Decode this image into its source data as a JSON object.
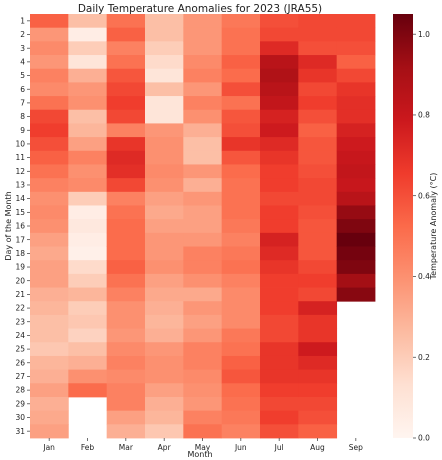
{
  "chart_data": {
    "type": "heatmap",
    "title": "Daily Temperature Anomalies for 2023 (JRA55)",
    "xlabel": "Month",
    "ylabel": "Day of the Month",
    "colorbar_label": "Temperature Anomaly (°C)",
    "colormap": "Reds",
    "vmin": 0.0,
    "vmax": 1.05,
    "colorbar_ticks": [
      "0.0",
      "0.2",
      "0.4",
      "0.6",
      "0.8",
      "1.0"
    ],
    "x_categories": [
      "Jan",
      "Feb",
      "Mar",
      "Apr",
      "May",
      "Jun",
      "Jul",
      "Aug",
      "Sep"
    ],
    "y_categories": [
      "1",
      "2",
      "3",
      "4",
      "5",
      "6",
      "7",
      "8",
      "9",
      "10",
      "11",
      "12",
      "13",
      "14",
      "15",
      "16",
      "17",
      "18",
      "19",
      "20",
      "21",
      "22",
      "23",
      "24",
      "25",
      "26",
      "27",
      "28",
      "29",
      "30",
      "31"
    ],
    "values": [
      [
        0.55,
        0.38,
        0.42,
        0.38,
        0.45,
        0.42,
        0.5,
        0.62,
        0.65,
        0.6,
        0.55,
        0.5,
        0.45,
        0.4,
        0.42,
        0.4,
        0.35,
        0.32,
        0.35,
        0.35,
        0.3,
        0.28,
        0.25,
        0.25,
        0.22,
        0.28,
        0.3,
        0.35,
        0.3,
        0.32,
        0.35
      ],
      [
        0.25,
        0.05,
        0.2,
        0.1,
        0.3,
        0.38,
        0.4,
        0.25,
        0.28,
        0.35,
        0.45,
        0.4,
        0.42,
        0.2,
        0.05,
        0.08,
        0.05,
        0.03,
        0.15,
        0.2,
        0.28,
        0.2,
        0.22,
        0.18,
        0.25,
        0.3,
        0.4,
        0.52,
        null,
        null,
        null
      ],
      [
        0.5,
        0.55,
        0.45,
        0.5,
        0.58,
        0.62,
        0.65,
        0.62,
        0.45,
        0.68,
        0.72,
        0.7,
        0.62,
        0.45,
        0.5,
        0.52,
        0.52,
        0.52,
        0.55,
        0.5,
        0.45,
        0.4,
        0.4,
        0.38,
        0.42,
        0.45,
        0.42,
        0.45,
        0.45,
        0.35,
        0.3
      ],
      [
        0.25,
        0.25,
        0.2,
        0.15,
        0.1,
        0.25,
        0.1,
        0.1,
        0.38,
        0.4,
        0.4,
        0.42,
        0.4,
        0.35,
        0.32,
        0.35,
        0.38,
        0.38,
        0.4,
        0.35,
        0.32,
        0.3,
        0.28,
        0.3,
        0.38,
        0.4,
        0.4,
        0.35,
        0.3,
        0.28,
        0.22
      ],
      [
        0.38,
        0.38,
        0.38,
        0.42,
        0.45,
        0.38,
        0.45,
        0.4,
        0.3,
        0.25,
        0.25,
        0.38,
        0.3,
        0.38,
        0.35,
        0.35,
        0.38,
        0.45,
        0.45,
        0.4,
        0.32,
        0.38,
        0.35,
        0.38,
        0.45,
        0.45,
        0.42,
        0.4,
        0.38,
        0.45,
        0.5
      ],
      [
        0.48,
        0.5,
        0.5,
        0.55,
        0.52,
        0.6,
        0.5,
        0.58,
        0.6,
        0.68,
        0.58,
        0.52,
        0.5,
        0.5,
        0.5,
        0.48,
        0.45,
        0.48,
        0.5,
        0.45,
        0.42,
        0.42,
        0.42,
        0.48,
        0.5,
        0.55,
        0.58,
        0.52,
        0.5,
        0.48,
        0.45
      ],
      [
        0.6,
        0.62,
        0.72,
        0.85,
        0.88,
        0.85,
        0.82,
        0.75,
        0.78,
        0.72,
        0.68,
        0.65,
        0.65,
        0.62,
        0.65,
        0.65,
        0.75,
        0.72,
        0.68,
        0.65,
        0.65,
        0.65,
        0.62,
        0.62,
        0.68,
        0.68,
        0.68,
        0.65,
        0.62,
        0.65,
        0.6
      ],
      [
        0.62,
        0.62,
        0.6,
        0.72,
        0.68,
        0.62,
        0.65,
        0.6,
        0.55,
        0.58,
        0.58,
        0.6,
        0.62,
        0.62,
        0.6,
        0.58,
        0.58,
        0.58,
        0.62,
        0.65,
        0.62,
        0.75,
        0.68,
        0.68,
        0.78,
        0.72,
        0.68,
        0.65,
        0.62,
        0.6,
        0.55
      ],
      [
        0.62,
        0.62,
        0.6,
        0.55,
        0.62,
        0.68,
        0.7,
        0.7,
        0.75,
        0.78,
        0.8,
        0.82,
        0.8,
        0.85,
        0.95,
        1.0,
        1.05,
        1.02,
        1.0,
        0.92,
        0.98,
        null,
        null,
        null,
        null,
        null,
        null,
        null,
        null,
        null,
        null
      ]
    ]
  }
}
